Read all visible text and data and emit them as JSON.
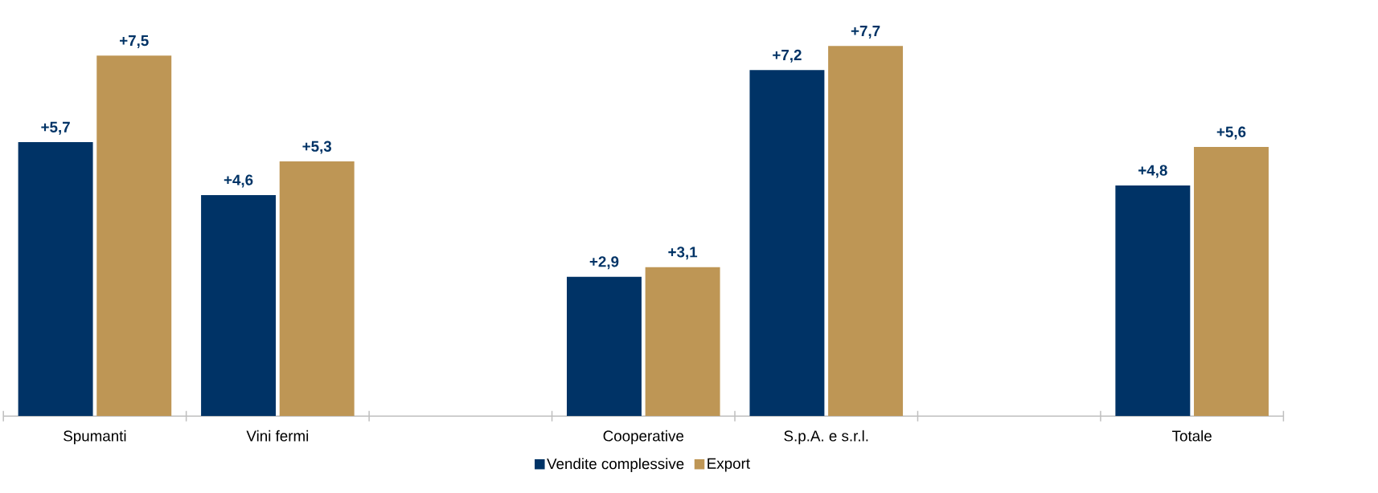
{
  "chart_data": {
    "type": "bar",
    "categories": [
      "Spumanti",
      "Vini fermi",
      null,
      "Cooperative",
      "S.p.A. e s.r.l.",
      null,
      "Totale"
    ],
    "series": [
      {
        "name": "Vendite complessive",
        "color": "#003366",
        "values": [
          5.7,
          4.6,
          null,
          2.9,
          7.2,
          null,
          4.8
        ],
        "value_labels": [
          "+5,7",
          "+4,6",
          null,
          "+2,9",
          "+7,2",
          null,
          "+4,8"
        ]
      },
      {
        "name": "Export",
        "color": "#be9655",
        "values": [
          7.5,
          5.3,
          null,
          3.1,
          7.7,
          null,
          5.6
        ],
        "value_labels": [
          "+7,5",
          "+5,3",
          null,
          "+3,1",
          "+7,7",
          null,
          "+5,6"
        ]
      }
    ],
    "legend": "bottom"
  }
}
